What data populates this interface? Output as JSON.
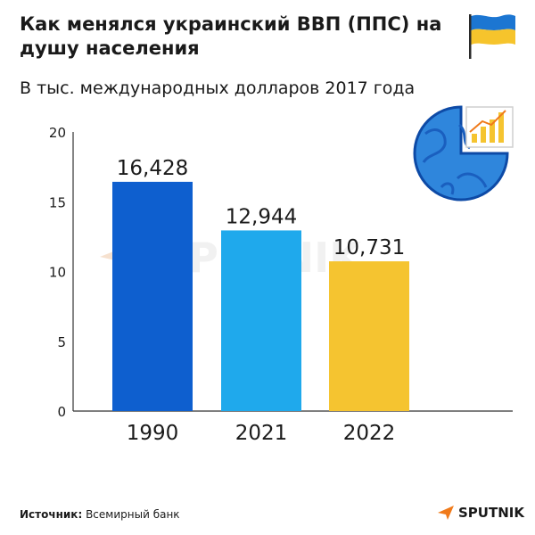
{
  "title": "Как менялся украинский ВВП (ППС) на душу населения",
  "subtitle": "В тыс. международных долларов 2017 года",
  "source": {
    "label": "Источник:",
    "value": "Всемирный банк"
  },
  "brand": {
    "name": "SPUTNIK",
    "icon": "sputnik-arrow-icon"
  },
  "watermark": "SPUTNIK",
  "icons": {
    "flag": "ukraine-flag-icon",
    "globe": "globe-chart-icon"
  },
  "colors": {
    "bar_1990": "#0e5fcf",
    "bar_2021": "#1fa9ec",
    "bar_2022": "#f5c430",
    "accent": "#f07a1a"
  },
  "chart_data": {
    "type": "bar",
    "categories": [
      "1990",
      "2021",
      "2022"
    ],
    "values": [
      16.428,
      12.944,
      10.731
    ],
    "value_labels": [
      "16,428",
      "12,944",
      "10,731"
    ],
    "ylim": [
      0,
      20
    ],
    "yticks": [
      0,
      5,
      10,
      15,
      20
    ],
    "grid": false
  }
}
